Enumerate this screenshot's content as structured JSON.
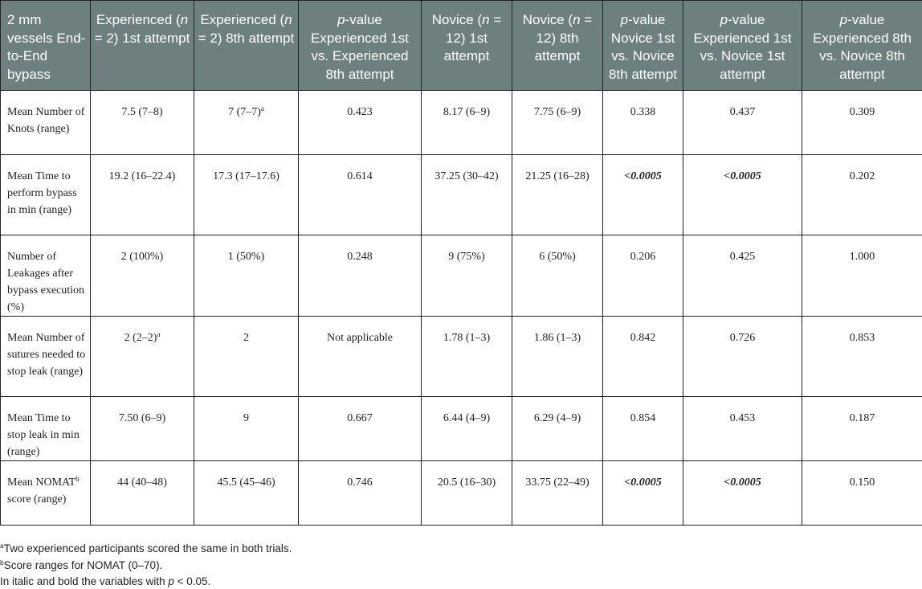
{
  "header": {
    "col0": "2 mm vessels End-to-End bypass",
    "col1": {
      "pre": "Experienced (",
      "n": "n",
      "post": " = 2) 1st attempt"
    },
    "col2": {
      "pre": "Experienced (",
      "n": "n",
      "post": " = 2) 8th attempt"
    },
    "col3": {
      "p": "p",
      "post": "-value Experienced 1st vs. Experienced 8th attempt"
    },
    "col4": {
      "pre": "Novice (",
      "n": "n",
      "post": " = 12) 1st attempt"
    },
    "col5": {
      "pre": "Novice (",
      "n": "n",
      "post": " = 12) 8th attempt"
    },
    "col6": {
      "p": "p",
      "post": "-value Novice 1st vs. Novice 8th attempt"
    },
    "col7": {
      "p": "p",
      "post": "-value Experienced 1st vs. Novice 1st attempt"
    },
    "col8": {
      "p": "p",
      "post": "-value Experienced 8th vs. Novice 8th attempt"
    }
  },
  "rows": [
    {
      "label": "Mean Number of Knots (range)",
      "cells": [
        "7.5 (7–8)",
        "7 (7–7)",
        "0.423",
        "8.17 (6–9)",
        "7.75 (6–9)",
        "0.338",
        "0.437",
        "0.309"
      ],
      "sup_c2": "a"
    },
    {
      "label": "Mean Time to perform bypass in min (range)",
      "cells": [
        "19.2 (16–22.4)",
        "17.3 (17–17.6)",
        "0.614",
        "37.25 (30–42)",
        "21.25 (16–28)",
        "<0.0005",
        "<0.0005",
        "0.202"
      ]
    },
    {
      "label": "Number of Leakages after bypass execution (%)",
      "cells": [
        "2 (100%)",
        "1 (50%)",
        "0.248",
        "9 (75%)",
        "6 (50%)",
        "0.206",
        "0.425",
        "1.000"
      ]
    },
    {
      "label": "Mean Number of sutures needed to stop leak (range)",
      "cells": [
        "2 (2–2)",
        "2",
        "Not applicable",
        "1.78 (1–3)",
        "1.86 (1–3)",
        "0.842",
        "0.726",
        "0.853"
      ],
      "sup_c1": "a"
    },
    {
      "label": "Mean Time to stop leak in min (range)",
      "cells": [
        "7.50 (6–9)",
        "9",
        "0.667",
        "6.44 (4–9)",
        "6.29 (4–9)",
        "0.854",
        "0.453",
        "0.187"
      ]
    },
    {
      "label_pre": "Mean NOMAT",
      "label_sup": "b",
      "label_post": " score (range)",
      "cells": [
        "44 (40–48)",
        "45.5 (45–46)",
        "0.746",
        "20.5 (16–30)",
        "33.75 (22–49)",
        "<0.0005",
        "<0.0005",
        "0.150"
      ]
    }
  ],
  "footnotes": {
    "a_mark": "a",
    "a_text": "Two experienced participants scored the same in both trials.",
    "b_mark": "b",
    "b_text": "Score ranges for NOMAT (0–70).",
    "c_pre": "In italic and bold the variables with ",
    "c_p": "p",
    "c_post": " < 0.05."
  }
}
